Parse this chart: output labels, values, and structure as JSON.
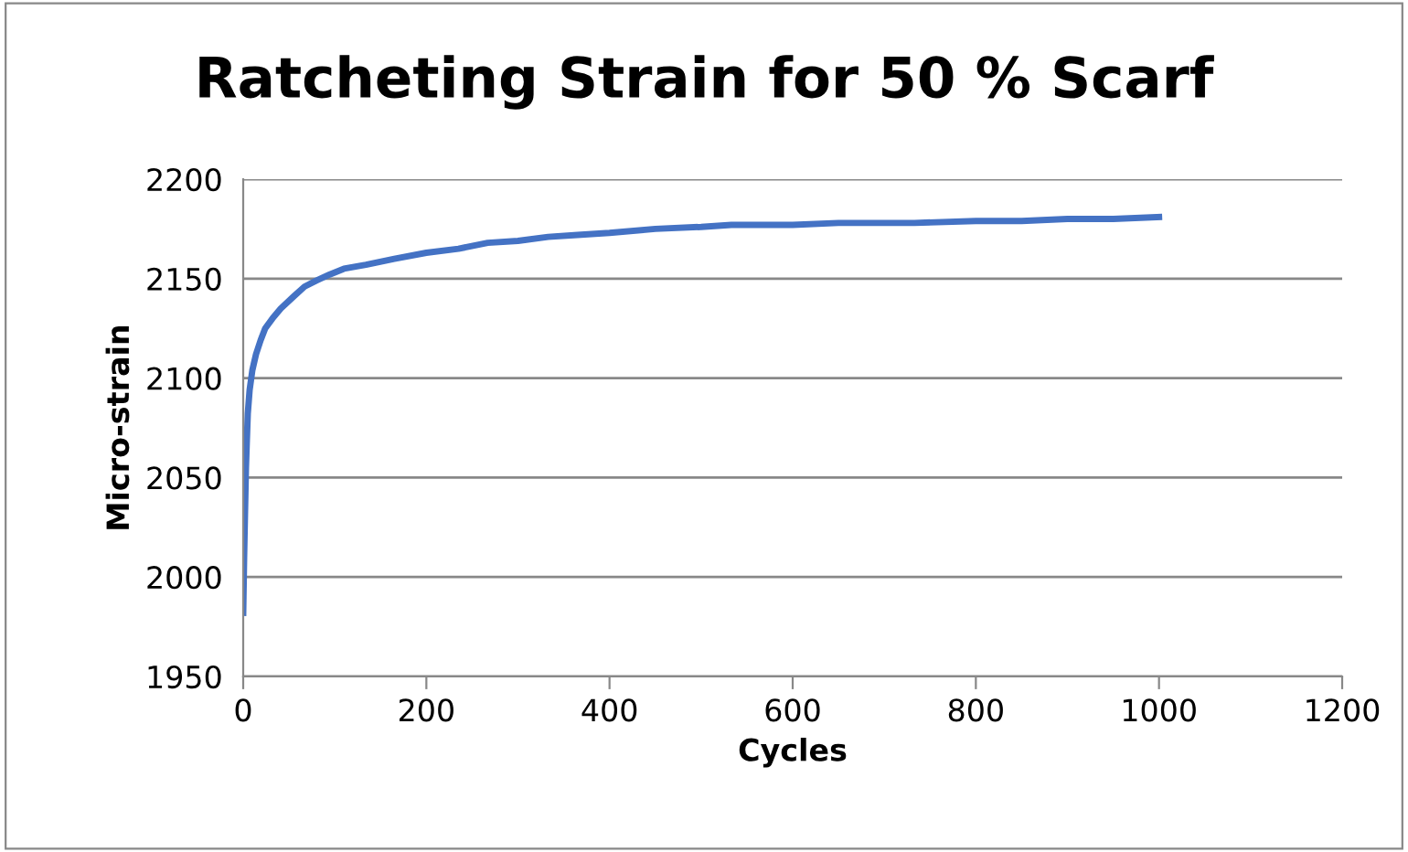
{
  "chart_data": {
    "type": "line",
    "title": "Ratcheting Strain for 50 % Scarf",
    "xlabel": "Cycles",
    "ylabel": "Micro-strain",
    "series": [
      {
        "color": "#4472c4",
        "x": [
          0,
          1,
          2,
          3,
          4,
          5,
          7,
          10,
          14,
          19,
          24,
          32,
          41,
          55,
          67,
          80,
          94,
          110,
          134,
          165,
          200,
          235,
          267,
          300,
          333,
          365,
          400,
          450,
          500,
          533,
          600,
          650,
          733,
          800,
          850,
          900,
          950,
          1000
        ],
        "values": [
          1982,
          2010,
          2033,
          2055,
          2069,
          2082,
          2094,
          2104,
          2112,
          2119,
          2125,
          2130,
          2135,
          2141,
          2146,
          2149,
          2152,
          2155,
          2157,
          2160,
          2163,
          2165,
          2168,
          2169,
          2171,
          2172,
          2173,
          2175,
          2176,
          2177,
          2177,
          2178,
          2178,
          2179,
          2179,
          2180,
          2180,
          2181
        ]
      }
    ],
    "xlim": [
      0,
      1200
    ],
    "xticks": [
      0,
      200,
      400,
      600,
      800,
      1000,
      1200
    ],
    "ylim": [
      1950,
      2200
    ],
    "yticks": [
      1950,
      2000,
      2050,
      2100,
      2150,
      2200
    ],
    "grid": "y",
    "legend": false,
    "marker": "none",
    "line_style": "solid"
  }
}
